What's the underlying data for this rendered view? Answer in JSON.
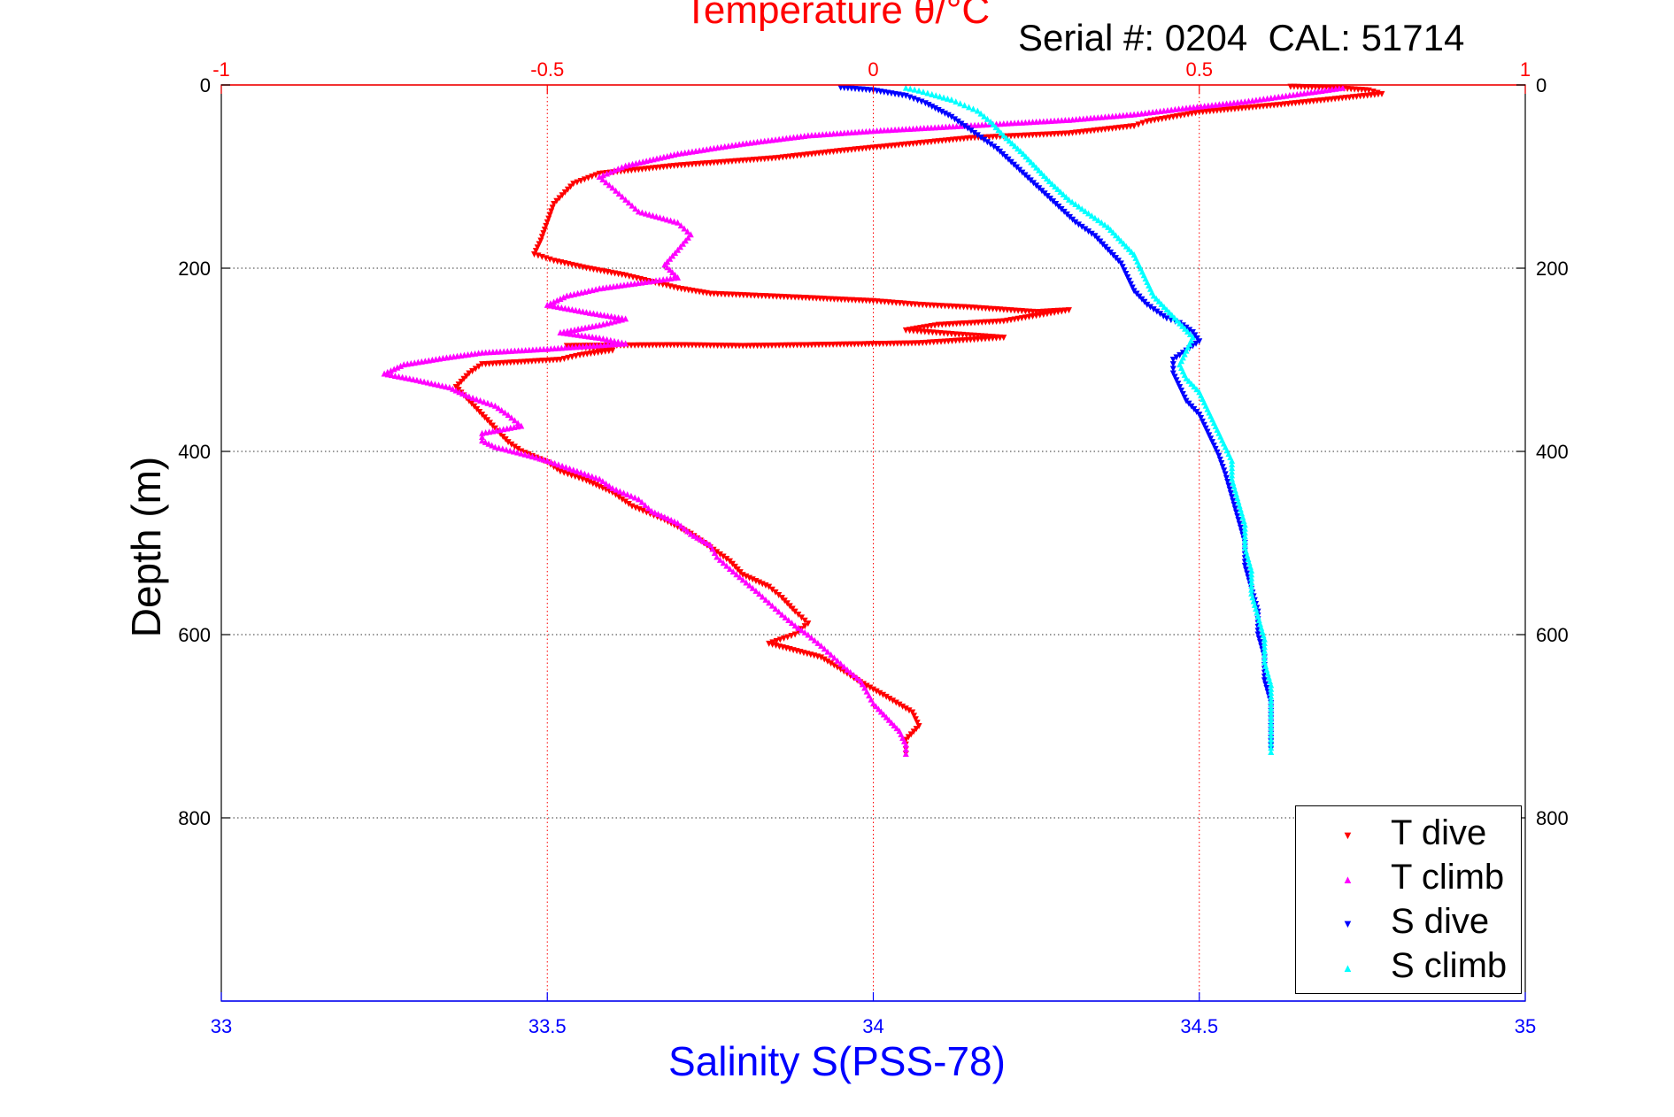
{
  "chart_data": {
    "type": "scatter",
    "title_top": "Temperature θ/°C",
    "serial_label": "Serial #: 0204",
    "cal_label": "CAL: 51714",
    "xlabel_bottom": "Salinity S(PSS-78)",
    "ylabel": "Depth (m)",
    "x_top": {
      "label": "Temperature θ/°C",
      "lim": [
        -1,
        1
      ],
      "ticks": [
        -1,
        -0.5,
        0,
        0.5,
        1
      ],
      "tick_labels": [
        "-1",
        "-0.5",
        "0",
        "0.5",
        "1"
      ],
      "color": "#ff0000",
      "grid": true
    },
    "x_bottom": {
      "label": "Salinity S(PSS-78)",
      "lim": [
        33,
        35
      ],
      "ticks": [
        33,
        33.5,
        34,
        34.5,
        35
      ],
      "tick_labels": [
        "33",
        "33.5",
        "34",
        "34.5",
        "35"
      ],
      "color": "#0000ff"
    },
    "y": {
      "label": "Depth (m)",
      "lim": [
        0,
        1000
      ],
      "reversed": true,
      "ticks": [
        0,
        200,
        400,
        600,
        800
      ],
      "tick_labels": [
        "0",
        "200",
        "400",
        "600",
        "800"
      ],
      "grid": true
    },
    "legend_position": "bottom-right",
    "series": [
      {
        "name": "T dive",
        "axis": "temperature",
        "marker": "triangle-down",
        "color": "#ff0000",
        "points": [
          [
            0.64,
            2
          ],
          [
            0.7,
            3
          ],
          [
            0.76,
            6
          ],
          [
            0.78,
            10
          ],
          [
            0.62,
            22
          ],
          [
            0.5,
            30
          ],
          [
            0.42,
            40
          ],
          [
            0.4,
            45
          ],
          [
            0.3,
            53
          ],
          [
            0.15,
            58
          ],
          [
            0.05,
            65
          ],
          [
            -0.05,
            72
          ],
          [
            -0.15,
            80
          ],
          [
            -0.3,
            88
          ],
          [
            -0.42,
            97
          ],
          [
            -0.46,
            108
          ],
          [
            -0.49,
            130
          ],
          [
            -0.5,
            150
          ],
          [
            -0.51,
            170
          ],
          [
            -0.52,
            185
          ],
          [
            -0.49,
            192
          ],
          [
            -0.44,
            200
          ],
          [
            -0.38,
            208
          ],
          [
            -0.34,
            215
          ],
          [
            -0.3,
            222
          ],
          [
            -0.25,
            228
          ],
          [
            -0.12,
            232
          ],
          [
            0.0,
            236
          ],
          [
            0.07,
            240
          ],
          [
            0.15,
            243
          ],
          [
            0.25,
            248
          ],
          [
            0.3,
            246
          ],
          [
            0.2,
            258
          ],
          [
            0.1,
            262
          ],
          [
            0.05,
            268
          ],
          [
            0.12,
            272
          ],
          [
            0.2,
            276
          ],
          [
            0.07,
            282
          ],
          [
            -0.1,
            284
          ],
          [
            -0.2,
            285
          ],
          [
            -0.3,
            284
          ],
          [
            -0.47,
            285
          ],
          [
            -0.4,
            290
          ],
          [
            -0.45,
            295
          ],
          [
            -0.48,
            300
          ],
          [
            -0.6,
            305
          ],
          [
            -0.62,
            315
          ],
          [
            -0.64,
            330
          ],
          [
            -0.62,
            345
          ],
          [
            -0.6,
            360
          ],
          [
            -0.58,
            375
          ],
          [
            -0.56,
            390
          ],
          [
            -0.54,
            400
          ],
          [
            -0.5,
            412
          ],
          [
            -0.48,
            422
          ],
          [
            -0.44,
            432
          ],
          [
            -0.4,
            445
          ],
          [
            -0.37,
            460
          ],
          [
            -0.32,
            475
          ],
          [
            -0.28,
            490
          ],
          [
            -0.25,
            505
          ],
          [
            -0.22,
            520
          ],
          [
            -0.2,
            535
          ],
          [
            -0.16,
            548
          ],
          [
            -0.14,
            560
          ],
          [
            -0.12,
            575
          ],
          [
            -0.1,
            588
          ],
          [
            -0.12,
            600
          ],
          [
            -0.16,
            610
          ],
          [
            -0.08,
            625
          ],
          [
            -0.05,
            638
          ],
          [
            -0.02,
            652
          ],
          [
            0.02,
            668
          ],
          [
            0.06,
            685
          ],
          [
            0.07,
            700
          ],
          [
            0.05,
            715
          ],
          [
            0.05,
            730
          ]
        ]
      },
      {
        "name": "T climb",
        "axis": "temperature",
        "marker": "triangle-up",
        "color": "#ff00ff",
        "points": [
          [
            0.72,
            3
          ],
          [
            0.65,
            10
          ],
          [
            0.57,
            18
          ],
          [
            0.48,
            25
          ],
          [
            0.4,
            32
          ],
          [
            0.3,
            38
          ],
          [
            0.2,
            42
          ],
          [
            0.1,
            46
          ],
          [
            0.0,
            50
          ],
          [
            -0.1,
            55
          ],
          [
            -0.2,
            64
          ],
          [
            -0.3,
            75
          ],
          [
            -0.38,
            88
          ],
          [
            -0.42,
            100
          ],
          [
            -0.4,
            112
          ],
          [
            -0.38,
            125
          ],
          [
            -0.36,
            138
          ],
          [
            -0.3,
            150
          ],
          [
            -0.28,
            163
          ],
          [
            -0.3,
            180
          ],
          [
            -0.32,
            196
          ],
          [
            -0.3,
            210
          ],
          [
            -0.35,
            215
          ],
          [
            -0.42,
            222
          ],
          [
            -0.47,
            230
          ],
          [
            -0.5,
            240
          ],
          [
            -0.44,
            248
          ],
          [
            -0.38,
            255
          ],
          [
            -0.42,
            262
          ],
          [
            -0.48,
            270
          ],
          [
            -0.42,
            276
          ],
          [
            -0.38,
            282
          ],
          [
            -0.5,
            288
          ],
          [
            -0.6,
            292
          ],
          [
            -0.66,
            298
          ],
          [
            -0.72,
            305
          ],
          [
            -0.75,
            315
          ],
          [
            -0.7,
            322
          ],
          [
            -0.65,
            330
          ],
          [
            -0.62,
            340
          ],
          [
            -0.58,
            350
          ],
          [
            -0.56,
            360
          ],
          [
            -0.54,
            372
          ],
          [
            -0.6,
            380
          ],
          [
            -0.6,
            388
          ],
          [
            -0.58,
            395
          ],
          [
            -0.54,
            402
          ],
          [
            -0.5,
            410
          ],
          [
            -0.46,
            420
          ],
          [
            -0.42,
            430
          ],
          [
            -0.4,
            440
          ],
          [
            -0.36,
            452
          ],
          [
            -0.34,
            465
          ],
          [
            -0.3,
            478
          ],
          [
            -0.28,
            490
          ],
          [
            -0.25,
            502
          ],
          [
            -0.24,
            515
          ],
          [
            -0.22,
            528
          ],
          [
            -0.2,
            540
          ],
          [
            -0.18,
            552
          ],
          [
            -0.16,
            565
          ],
          [
            -0.14,
            578
          ],
          [
            -0.12,
            590
          ],
          [
            -0.1,
            600
          ],
          [
            -0.08,
            612
          ],
          [
            -0.06,
            625
          ],
          [
            -0.04,
            638
          ],
          [
            -0.02,
            650
          ],
          [
            -0.01,
            662
          ],
          [
            0.0,
            675
          ],
          [
            0.02,
            690
          ],
          [
            0.04,
            705
          ],
          [
            0.05,
            720
          ],
          [
            0.05,
            730
          ]
        ]
      },
      {
        "name": "S dive",
        "axis": "salinity",
        "marker": "triangle-down",
        "color": "#0000ff",
        "points": [
          [
            33.95,
            3
          ],
          [
            34.0,
            6
          ],
          [
            34.05,
            12
          ],
          [
            34.08,
            20
          ],
          [
            34.12,
            35
          ],
          [
            34.14,
            45
          ],
          [
            34.16,
            55
          ],
          [
            34.19,
            70
          ],
          [
            34.22,
            90
          ],
          [
            34.25,
            110
          ],
          [
            34.28,
            130
          ],
          [
            34.31,
            150
          ],
          [
            34.34,
            165
          ],
          [
            34.36,
            180
          ],
          [
            34.38,
            195
          ],
          [
            34.39,
            210
          ],
          [
            34.4,
            225
          ],
          [
            34.42,
            240
          ],
          [
            34.45,
            255
          ],
          [
            34.47,
            260
          ],
          [
            34.49,
            270
          ],
          [
            34.5,
            280
          ],
          [
            34.48,
            290
          ],
          [
            34.46,
            300
          ],
          [
            34.46,
            315
          ],
          [
            34.47,
            330
          ],
          [
            34.48,
            345
          ],
          [
            34.5,
            360
          ],
          [
            34.51,
            375
          ],
          [
            34.52,
            390
          ],
          [
            34.53,
            405
          ],
          [
            34.54,
            425
          ],
          [
            34.55,
            450
          ],
          [
            34.56,
            475
          ],
          [
            34.57,
            500
          ],
          [
            34.57,
            525
          ],
          [
            34.58,
            550
          ],
          [
            34.59,
            575
          ],
          [
            34.59,
            600
          ],
          [
            34.6,
            625
          ],
          [
            34.6,
            650
          ],
          [
            34.61,
            675
          ],
          [
            34.61,
            700
          ],
          [
            34.61,
            725
          ]
        ]
      },
      {
        "name": "S climb",
        "axis": "salinity",
        "marker": "triangle-up",
        "color": "#00ffff",
        "points": [
          [
            34.05,
            3
          ],
          [
            34.07,
            6
          ],
          [
            34.09,
            10
          ],
          [
            34.12,
            16
          ],
          [
            34.14,
            22
          ],
          [
            34.16,
            28
          ],
          [
            34.18,
            40
          ],
          [
            34.2,
            55
          ],
          [
            34.23,
            75
          ],
          [
            34.25,
            90
          ],
          [
            34.27,
            105
          ],
          [
            34.3,
            125
          ],
          [
            34.33,
            140
          ],
          [
            34.36,
            155
          ],
          [
            34.38,
            170
          ],
          [
            34.4,
            185
          ],
          [
            34.41,
            200
          ],
          [
            34.42,
            215
          ],
          [
            34.43,
            230
          ],
          [
            34.45,
            245
          ],
          [
            34.47,
            260
          ],
          [
            34.49,
            275
          ],
          [
            34.48,
            290
          ],
          [
            34.47,
            305
          ],
          [
            34.48,
            320
          ],
          [
            34.5,
            335
          ],
          [
            34.51,
            350
          ],
          [
            34.52,
            365
          ],
          [
            34.53,
            380
          ],
          [
            34.54,
            395
          ],
          [
            34.55,
            410
          ],
          [
            34.55,
            430
          ],
          [
            34.56,
            455
          ],
          [
            34.57,
            480
          ],
          [
            34.57,
            505
          ],
          [
            34.58,
            530
          ],
          [
            34.58,
            555
          ],
          [
            34.59,
            580
          ],
          [
            34.6,
            605
          ],
          [
            34.6,
            630
          ],
          [
            34.61,
            655
          ],
          [
            34.61,
            680
          ],
          [
            34.61,
            705
          ],
          [
            34.61,
            728
          ]
        ]
      }
    ]
  }
}
